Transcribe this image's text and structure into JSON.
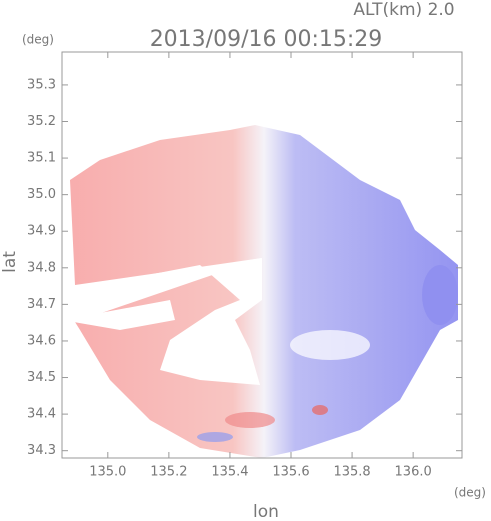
{
  "chart_data": {
    "type": "radar-map",
    "title": "2013/09/16 00:15:29",
    "subtitle": "ALT(km) 2.0",
    "x_label": "lon",
    "y_label": "lat",
    "x_unit": "(deg)",
    "y_unit": "(deg)",
    "xlim": [
      134.85,
      136.16
    ],
    "ylim": [
      34.28,
      35.39
    ],
    "xticks": [
      {
        "value": 135,
        "label": "135.0"
      },
      135.2,
      135.4,
      135.6,
      135.8,
      {
        "value": 136,
        "label": "136.0"
      }
    ],
    "yticks": [
      35.3,
      35.2,
      35.1,
      {
        "value": 35,
        "label": "35.0"
      },
      34.9,
      34.8,
      34.7,
      34.6,
      34.5,
      34.4,
      34.3
    ]
  }
}
